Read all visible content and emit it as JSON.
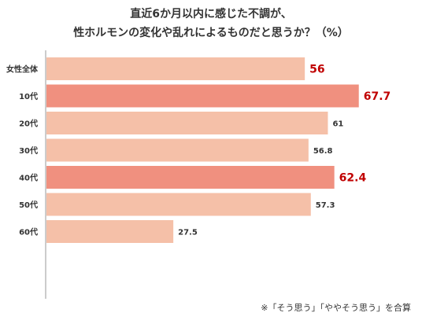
{
  "chart_data": {
    "type": "bar",
    "orientation": "horizontal",
    "title": "直近6か月以内に感じた不調が、",
    "subtitle": "性ホルモンの変化や乱れによるものだと思うか？（%）",
    "note": "※「そう思う」「ややそう思う」を合算",
    "categories": [
      "女性全体",
      "10代",
      "20代",
      "30代",
      "40代",
      "50代",
      "60代"
    ],
    "values": [
      56,
      67.7,
      61,
      56.8,
      62.4,
      57.3,
      27.5
    ],
    "value_labels": [
      "56",
      "67.7",
      "61",
      "56.8",
      "62.4",
      "57.3",
      "27.5"
    ],
    "highlight": [
      true,
      true,
      false,
      false,
      true,
      false,
      false
    ],
    "highlight_style": [
      "total",
      "bar",
      "none",
      "none",
      "bar",
      "none",
      "none"
    ],
    "xlim": [
      0,
      100
    ],
    "grid": false,
    "colors": {
      "bar": "#f5c0a8",
      "bar_highlight": "#f0907f",
      "label_highlight": "#c00000",
      "axis": "#999999",
      "text": "#333333"
    }
  }
}
